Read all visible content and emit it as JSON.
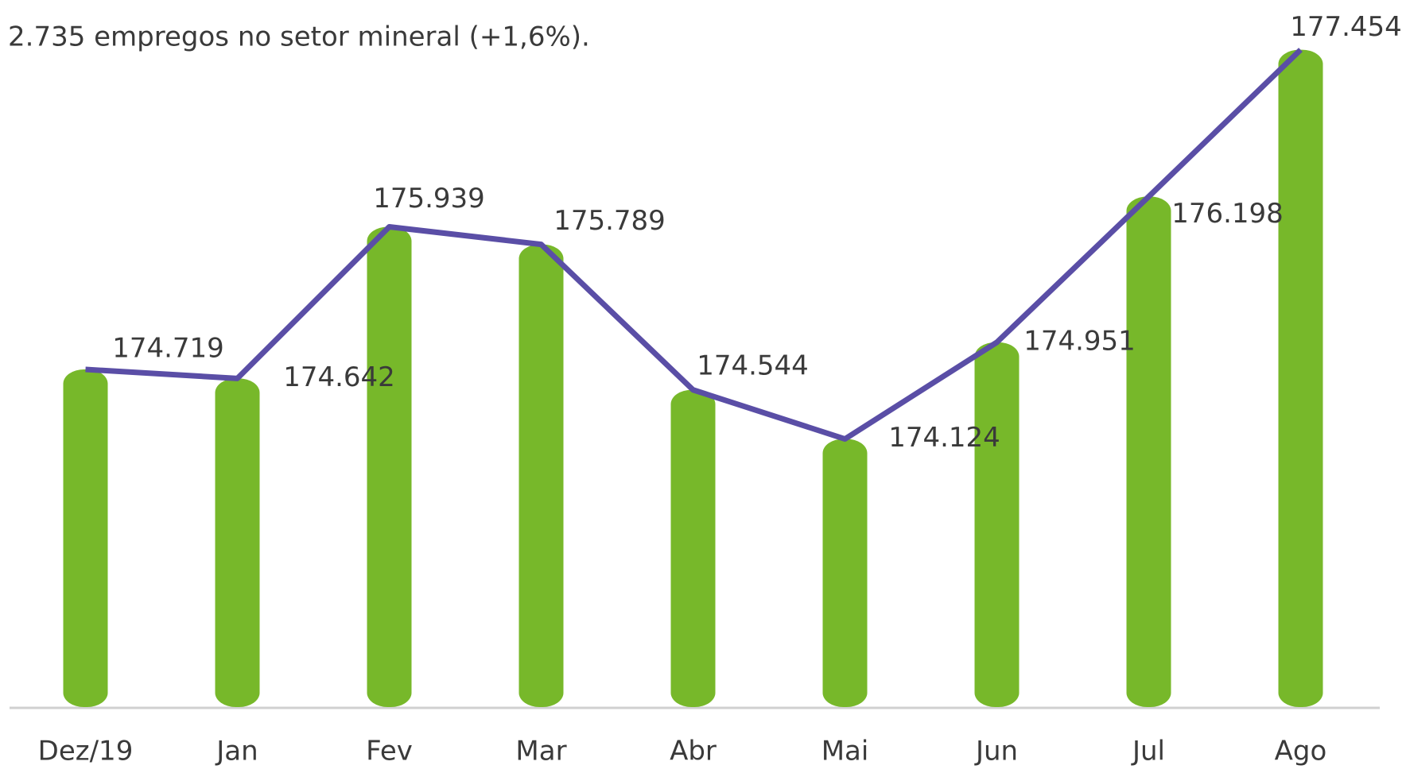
{
  "chart_data": {
    "type": "bar_line",
    "subtitle": "2.735 empregos no setor mineral (+1,6%).",
    "categories": [
      "Dez/19",
      "Jan",
      "Fev",
      "Mar",
      "Abr",
      "Mai",
      "Jun",
      "Jul",
      "Ago"
    ],
    "values": [
      174719,
      174642,
      175939,
      175789,
      174544,
      174124,
      174951,
      176198,
      177454
    ],
    "value_labels": [
      "174.719",
      "174.642",
      "175.939",
      "175.789",
      "174.544",
      "174.124",
      "174.951",
      "176.198",
      "177.454"
    ],
    "bar_color": "#77b82a",
    "line_color": "#5a4ea6",
    "ylim": [
      171830,
      177880
    ]
  }
}
